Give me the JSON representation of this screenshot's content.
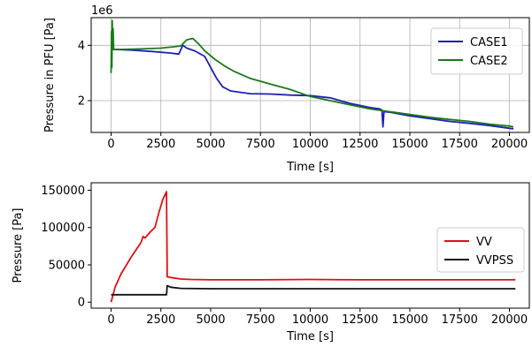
{
  "chart_data": [
    {
      "type": "line",
      "xlabel": "Time [s]",
      "ylabel": "Pressure in PFU [Pa]",
      "offset_text": "1e6",
      "xlim": [
        -1000,
        21000
      ],
      "ylim": [
        0.85,
        5.0
      ],
      "y_scale_factor": 1000000,
      "xticks": [
        0,
        2500,
        5000,
        7500,
        10000,
        12500,
        15000,
        17500,
        20000
      ],
      "yticks": [
        2,
        4
      ],
      "grid": true,
      "legend_position": "top-right",
      "series": [
        {
          "name": "CASE1",
          "color": "#1f1fb4",
          "points": [
            [
              0,
              3.85
            ],
            [
              150,
              3.85
            ],
            [
              1000,
              3.83
            ],
            [
              2000,
              3.78
            ],
            [
              3000,
              3.72
            ],
            [
              3400,
              3.68
            ],
            [
              3600,
              4.0
            ],
            [
              3800,
              3.9
            ],
            [
              4200,
              3.8
            ],
            [
              4700,
              3.6
            ],
            [
              5000,
              3.2
            ],
            [
              5300,
              2.8
            ],
            [
              5600,
              2.5
            ],
            [
              6000,
              2.35
            ],
            [
              6500,
              2.3
            ],
            [
              7000,
              2.25
            ],
            [
              8000,
              2.24
            ],
            [
              9000,
              2.2
            ],
            [
              10000,
              2.18
            ],
            [
              11000,
              2.1
            ],
            [
              12000,
              1.9
            ],
            [
              13000,
              1.75
            ],
            [
              13500,
              1.7
            ],
            [
              13600,
              1.65
            ],
            [
              13650,
              1.05
            ],
            [
              13700,
              1.6
            ],
            [
              14000,
              1.58
            ],
            [
              15000,
              1.45
            ],
            [
              16000,
              1.35
            ],
            [
              17000,
              1.25
            ],
            [
              18000,
              1.18
            ],
            [
              19000,
              1.1
            ],
            [
              20000,
              1.0
            ],
            [
              20200,
              0.98
            ]
          ]
        },
        {
          "name": "CASE2",
          "color": "#1a7a1a",
          "points": [
            [
              0,
              3.0
            ],
            [
              20,
              4.5
            ],
            [
              40,
              3.2
            ],
            [
              60,
              4.9
            ],
            [
              80,
              3.9
            ],
            [
              100,
              4.6
            ],
            [
              130,
              3.85
            ],
            [
              500,
              3.85
            ],
            [
              1500,
              3.87
            ],
            [
              2500,
              3.9
            ],
            [
              3200,
              3.95
            ],
            [
              3500,
              3.98
            ],
            [
              3800,
              4.2
            ],
            [
              4100,
              4.25
            ],
            [
              4400,
              4.05
            ],
            [
              4700,
              3.8
            ],
            [
              5200,
              3.5
            ],
            [
              5700,
              3.25
            ],
            [
              6200,
              3.05
            ],
            [
              7000,
              2.8
            ],
            [
              8000,
              2.6
            ],
            [
              9000,
              2.4
            ],
            [
              10000,
              2.15
            ],
            [
              11000,
              2.0
            ],
            [
              12000,
              1.85
            ],
            [
              13000,
              1.7
            ],
            [
              14000,
              1.6
            ],
            [
              15000,
              1.5
            ],
            [
              16000,
              1.4
            ],
            [
              17000,
              1.32
            ],
            [
              18000,
              1.25
            ],
            [
              19000,
              1.15
            ],
            [
              20000,
              1.08
            ],
            [
              20200,
              1.05
            ]
          ]
        }
      ]
    },
    {
      "type": "line",
      "xlabel": "Time [s]",
      "ylabel": "Pressure [Pa]",
      "xlim": [
        -1000,
        21000
      ],
      "ylim": [
        -8000,
        160000
      ],
      "xticks": [
        0,
        2500,
        5000,
        7500,
        10000,
        12500,
        15000,
        17500,
        20000
      ],
      "yticks": [
        0,
        50000,
        100000,
        150000
      ],
      "grid": false,
      "legend_position": "right",
      "series": [
        {
          "name": "VV",
          "color": "#dd1111",
          "points": [
            [
              0,
              0
            ],
            [
              200,
              20000
            ],
            [
              500,
              38000
            ],
            [
              1000,
              60000
            ],
            [
              1500,
              80000
            ],
            [
              1600,
              88000
            ],
            [
              1700,
              86000
            ],
            [
              2000,
              95000
            ],
            [
              2200,
              100000
            ],
            [
              2400,
              120000
            ],
            [
              2600,
              138000
            ],
            [
              2780,
              148000
            ],
            [
              2820,
              34000
            ],
            [
              3000,
              33000
            ],
            [
              3500,
              31000
            ],
            [
              4000,
              30500
            ],
            [
              5000,
              30000
            ],
            [
              7500,
              30000
            ],
            [
              10000,
              30500
            ],
            [
              12500,
              30000
            ],
            [
              15000,
              30000
            ],
            [
              17500,
              30000
            ],
            [
              20000,
              30000
            ],
            [
              20300,
              30000
            ]
          ]
        },
        {
          "name": "VVPSS",
          "color": "#111111",
          "points": [
            [
              0,
              10000
            ],
            [
              1000,
              10000
            ],
            [
              2000,
              10000
            ],
            [
              2780,
              10000
            ],
            [
              2820,
              22000
            ],
            [
              3000,
              20000
            ],
            [
              3500,
              18500
            ],
            [
              5000,
              18000
            ],
            [
              10000,
              18000
            ],
            [
              15000,
              18000
            ],
            [
              20000,
              18000
            ],
            [
              20300,
              18000
            ]
          ]
        }
      ]
    }
  ]
}
